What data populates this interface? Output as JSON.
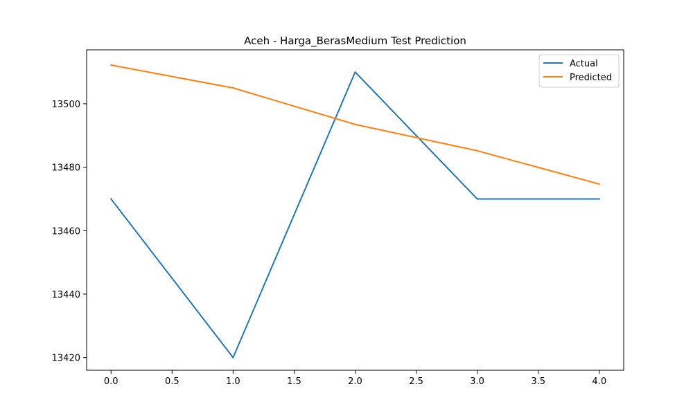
{
  "chart_data": {
    "type": "line",
    "title": "Aceh - Harga_BerasMedium Test Prediction",
    "xlabel": "",
    "ylabel": "",
    "x": [
      0,
      1,
      2,
      3,
      4
    ],
    "xlim": [
      -0.2,
      4.2
    ],
    "ylim": [
      13416,
      13517
    ],
    "xticks": [
      0.0,
      0.5,
      1.0,
      1.5,
      2.0,
      2.5,
      3.0,
      3.5,
      4.0
    ],
    "xtick_labels": [
      "0.0",
      "0.5",
      "1.0",
      "1.5",
      "2.0",
      "2.5",
      "3.0",
      "3.5",
      "4.0"
    ],
    "yticks": [
      13420,
      13440,
      13460,
      13480,
      13500
    ],
    "ytick_labels": [
      "13420",
      "13440",
      "13460",
      "13480",
      "13500"
    ],
    "grid": false,
    "legend_position": "top-right",
    "series": [
      {
        "name": "Actual",
        "color": "#1f77b4",
        "values": [
          13470,
          13420,
          13510,
          13470,
          13470
        ]
      },
      {
        "name": "Predicted",
        "color": "#ff7f0e",
        "values": [
          13512.2,
          13505,
          13493.5,
          13485.2,
          13474.7
        ]
      }
    ]
  }
}
